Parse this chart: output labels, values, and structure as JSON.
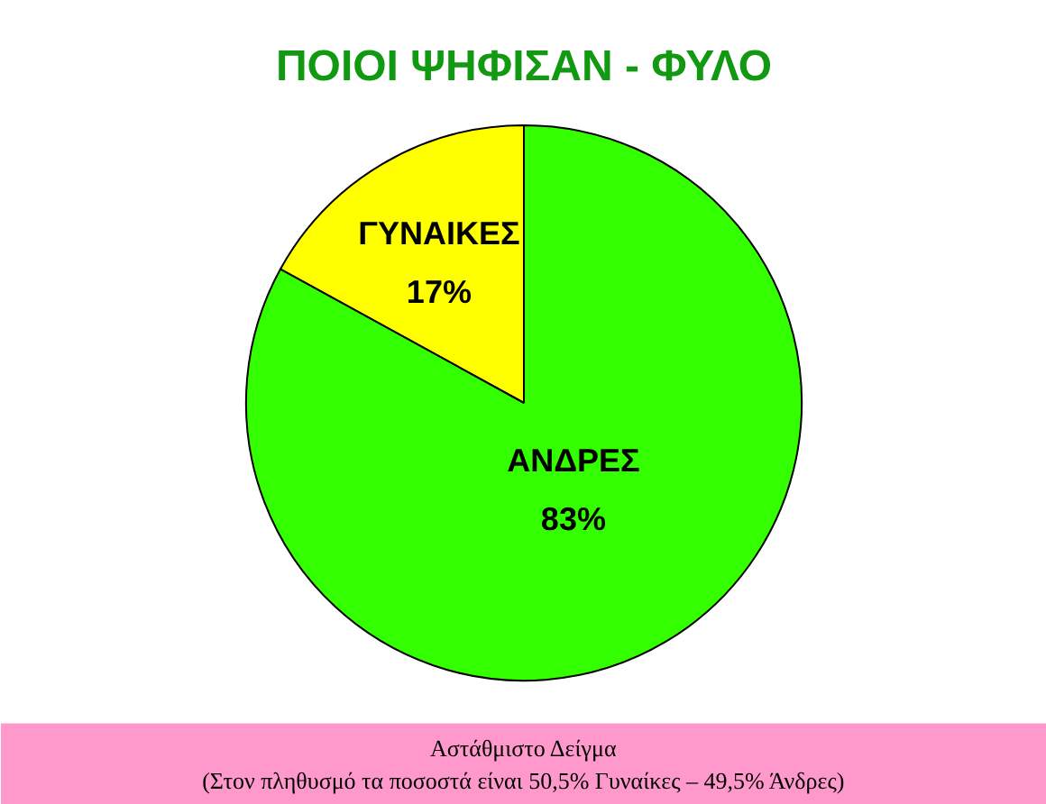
{
  "chart_data": {
    "type": "pie",
    "title": "ΠΟΙΟΙ ΨΗΦΙΣΑΝ - ΦΥΛΟ",
    "categories": [
      "ΓΥΝΑΙΚΕΣ",
      "ΑΝΔΡΕΣ"
    ],
    "values": [
      17,
      83
    ],
    "colors": [
      "#ffff00",
      "#33ff00"
    ],
    "value_labels": [
      "17%",
      "83%"
    ],
    "annotations": [
      "Αστάθμιστο Δείγμα",
      "(Στον πληθυσμό τα ποσοστά είναι 50,5% Γυναίκες – 49,5% Άνδρες)"
    ]
  }
}
